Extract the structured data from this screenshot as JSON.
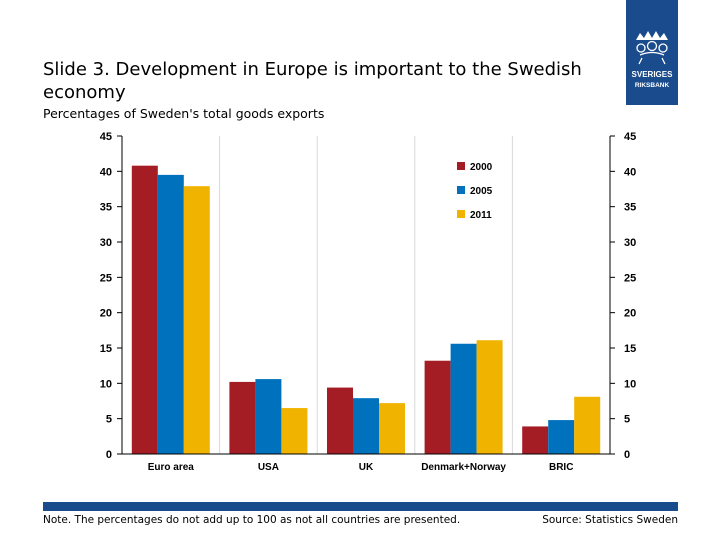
{
  "slide": {
    "title": "Slide 3. Development in Europe is important to the Swedish economy",
    "subtitle": "Percentages of Sweden's total goods exports",
    "note": "Note. The percentages do not add up to 100 as not all countries are presented.",
    "source": "Source: Statistics Sweden"
  },
  "logo": {
    "line1": "SVERIGES",
    "line2": "RIKSBANK",
    "icon": "crown-emblem-icon"
  },
  "colors": {
    "brand": "#1a4b8c",
    "series_2000": "#a51d24",
    "series_2005": "#0071bc",
    "series_2011": "#f0b400",
    "grid": "#d9d9d9"
  },
  "chart_data": {
    "type": "bar",
    "title": "",
    "xlabel": "",
    "ylabel": "",
    "categories": [
      "Euro area",
      "USA",
      "UK",
      "Denmark+Norway",
      "BRIC"
    ],
    "series": [
      {
        "name": "2000",
        "values": [
          40.8,
          10.2,
          9.4,
          13.2,
          3.9
        ]
      },
      {
        "name": "2005",
        "values": [
          39.5,
          10.6,
          7.9,
          15.6,
          4.8
        ]
      },
      {
        "name": "2011",
        "values": [
          37.9,
          6.5,
          7.2,
          16.1,
          8.1
        ]
      }
    ],
    "ylim": [
      0,
      45
    ],
    "yticks": [
      "0",
      "5",
      "10",
      "15",
      "20",
      "25",
      "30",
      "35",
      "40",
      "45"
    ],
    "ytick_values": [
      0,
      5,
      10,
      15,
      20,
      25,
      30,
      35,
      40,
      45
    ],
    "legend_position": "top-right",
    "grid": true,
    "dual_axis_labels": true
  }
}
